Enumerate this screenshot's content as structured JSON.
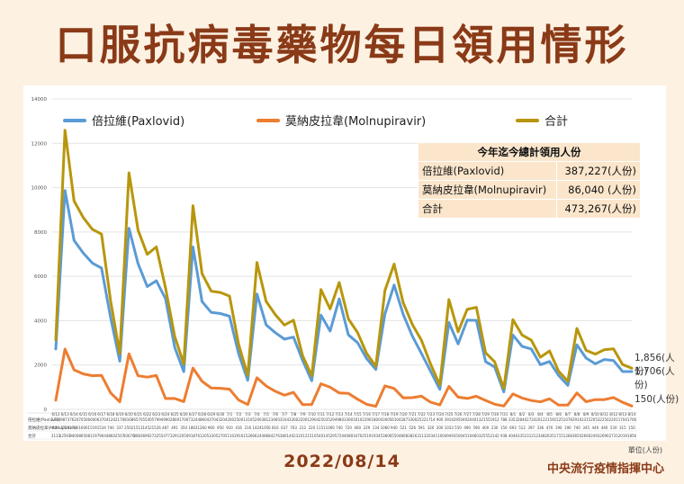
{
  "title": "口服抗病毒藥物每日領用情形",
  "date": "2022/08/14",
  "source": "中央流行疫情指揮中心",
  "unit": "單位(人份)",
  "legend": {
    "paxlovid": "倍拉維(Paxlovid)",
    "molnupiravir": "莫納皮拉韋(Molnupiravir)",
    "total": "合計"
  },
  "summary": {
    "header": "今年迄今總計領用人份",
    "rows": [
      {
        "label": "倍拉維(Paxlovid)",
        "value": "387,227(人份)"
      },
      {
        "label": "莫納皮拉韋(Molnupiravir)",
        "value": "86,040 (人份)"
      },
      {
        "label": "合計",
        "value": "473,267(人份)"
      }
    ]
  },
  "end_labels": {
    "total": "1,856(人份)",
    "paxlovid": "1,706(人份)",
    "molnupiravir": "150(人份)"
  },
  "table_row_labels": [
    "倍拉維(Paxlovid)",
    "莫納皮拉韋(Molnupiravir)",
    "合計"
  ],
  "colors": {
    "paxlovid": "#5b9bd5",
    "molnupiravir": "#ed7d31",
    "total": "#b8960c",
    "title": "#8a3a17",
    "background": "#fdf1e2"
  },
  "chart_data": {
    "type": "line",
    "ylim": [
      0,
      14000
    ],
    "yticks": [
      0,
      2000,
      4000,
      6000,
      8000,
      10000,
      12000,
      14000
    ],
    "grid": true,
    "legend_position": "top",
    "categories": [
      "6/12",
      "6/13",
      "6/14",
      "6/15",
      "6/16",
      "6/17",
      "6/18",
      "6/19",
      "6/20",
      "6/21",
      "6/22",
      "6/23",
      "6/24",
      "6/25",
      "6/26",
      "6/27",
      "6/28",
      "6/29",
      "6/30",
      "7/1",
      "7/2",
      "7/3",
      "7/4",
      "7/5",
      "7/6",
      "7/7",
      "7/8",
      "7/9",
      "7/10",
      "7/11",
      "7/12",
      "7/13",
      "7/14",
      "7/15",
      "7/16",
      "7/17",
      "7/18",
      "7/19",
      "7/20",
      "7/21",
      "7/22",
      "7/23",
      "7/24",
      "7/25",
      "7/26",
      "7/27",
      "7/28",
      "7/29",
      "7/30",
      "7/31",
      "8/1",
      "8/2",
      "8/3",
      "8/4",
      "8/5",
      "8/6",
      "8/7",
      "8/8",
      "8/9",
      "8/10",
      "8/11",
      "8/12",
      "8/13",
      "8/14"
    ],
    "series": [
      {
        "name": "倍拉維(Paxlovid)",
        "key": "paxlovid",
        "values": [
          2724,
          9873,
          7620,
          7050,
          6600,
          6370,
          4120,
          2170,
          8168,
          6570,
          5540,
          5799,
          4990,
          2800,
          1700,
          7324,
          4860,
          4370,
          4320,
          4200,
          2500,
          1310,
          5200,
          3812,
          3460,
          3164,
          3260,
          2200,
          1290,
          4250,
          3529,
          4980,
          3360,
          3010,
          2290,
          1800,
          4300,
          5610,
          4287,
          3300,
          2522,
          1714,
          900,
          3916,
          2950,
          4020,
          4013,
          2155,
          1912,
          788,
          3353,
          2840,
          2724,
          2012,
          2159,
          1525,
          1078,
          2910,
          2315,
          2053,
          2250,
          2201,
          1704,
          1706
        ]
      },
      {
        "name": "莫納皮拉韋(Molnupiravir)",
        "key": "molnupiravir",
        "values": [
          409,
          2720,
          1780,
          1600,
          1519,
          1534,
          740,
          337,
          2502,
          1513,
          1452,
          1526,
          487,
          491,
          350,
          1863,
          1260,
          960,
          950,
          910,
          416,
          216,
          1424,
          1056,
          816,
          637,
          763,
          212,
          220,
          1151,
          1000,
          740,
          720,
          460,
          229,
          134,
          1060,
          940,
          521,
          526,
          591,
          320,
          200,
          1033,
          550,
          490,
          590,
          400,
          230,
          150,
          693,
          512,
          397,
          336,
          476,
          190,
          190,
          740,
          345,
          440,
          440,
          530,
          315,
          150
        ]
      },
      {
        "name": "合計",
        "key": "total",
        "values": [
          3133,
          12593,
          9400,
          8650,
          8119,
          7904,
          4860,
          2507,
          10670,
          8083,
          6992,
          7325,
          5477,
          3291,
          2050,
          9187,
          6120,
          5330,
          5270,
          5110,
          2916,
          1526,
          6624,
          4868,
          4276,
          3801,
          4023,
          2412,
          1510,
          5401,
          4529,
          5720,
          4080,
          3470,
          2519,
          1934,
          5360,
          6550,
          4808,
          3826,
          3113,
          2034,
          1100,
          4949,
          3500,
          4510,
          4603,
          2555,
          2142,
          938,
          4046,
          3352,
          3121,
          2348,
          2635,
          1715,
          1268,
          3650,
          2660,
          2493,
          2690,
          2731,
          2019,
          1856
        ]
      }
    ]
  }
}
